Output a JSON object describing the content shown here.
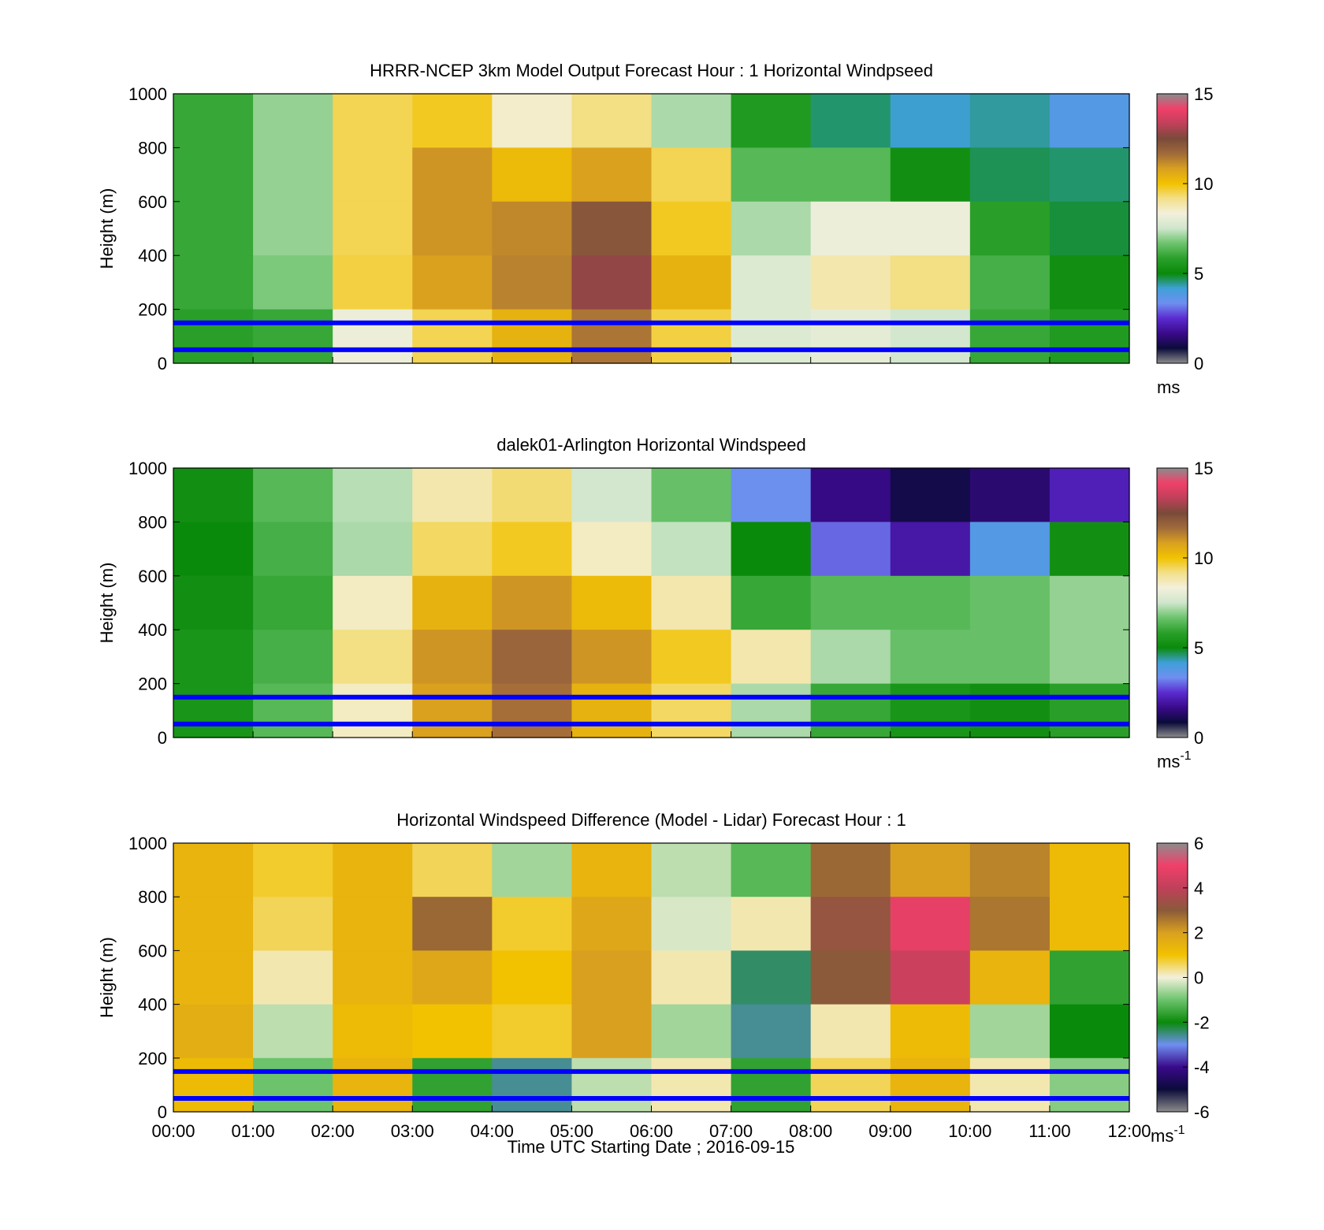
{
  "figure": {
    "time_axis_label": "Time UTC  Starting Date ; 2016-09-15"
  },
  "colors": {
    "wind_cmap": [
      "#8c8c8c",
      "#0b0b3a",
      "#3a0a8a",
      "#5b2bd0",
      "#6f8ff0",
      "#3fa0d8",
      "#0a8a0a",
      "#2aa02a",
      "#6cc36c",
      "#cfe6cc",
      "#f3f0dc",
      "#f3e08a",
      "#f2c200",
      "#d9a020",
      "#a06a3a",
      "#7a4a3a",
      "#c0405a",
      "#f0406a",
      "#8c8c8c"
    ],
    "diff_cmap": [
      "#8c8c8c",
      "#0b0b3a",
      "#3a0a8a",
      "#6f8ff0",
      "#0a8a0a",
      "#6cc36c",
      "#f3f0dc",
      "#f2c200",
      "#d9a020",
      "#8a5a3a",
      "#c0405a",
      "#f0406a",
      "#8c8c8c"
    ],
    "marker_line": "#0000ff"
  },
  "chart_data": [
    {
      "type": "heatmap",
      "title": "HRRR-NCEP 3km Model Output   Forecast Hour : 1 Horizontal Windpseed",
      "ylabel": "Height (m)",
      "ylim": [
        0,
        1000
      ],
      "y_ticks": [
        "0",
        "200",
        "400",
        "600",
        "800",
        "1000"
      ],
      "x_ticks": [],
      "colorbar": {
        "range": [
          0,
          15
        ],
        "ticks": [
          "0",
          "5",
          "10",
          "15"
        ],
        "unit": "ms",
        "unit_sup": ""
      },
      "reference_heights_m": [
        50,
        150
      ],
      "x_hours": [
        0.5,
        1.5,
        2.5,
        3.5,
        4.5,
        5.5,
        6.5,
        7.5,
        8.5,
        9.5,
        10.5,
        11.5
      ],
      "y_heights_m": [
        900,
        700,
        500,
        300,
        100
      ],
      "values": [
        [
          6.0,
          7.0,
          9.5,
          9.8,
          8.5,
          9.2,
          7.2,
          5.6,
          4.6,
          4.2,
          4.4,
          3.8
        ],
        [
          6.0,
          7.0,
          9.5,
          11.0,
          10.2,
          10.8,
          9.5,
          6.4,
          6.4,
          5.2,
          4.7,
          4.6
        ],
        [
          6.0,
          7.0,
          9.5,
          11.0,
          11.2,
          12.2,
          9.8,
          7.2,
          8.2,
          8.2,
          5.8,
          4.8
        ],
        [
          6.0,
          6.8,
          9.6,
          10.8,
          11.3,
          12.8,
          10.4,
          7.8,
          8.8,
          9.2,
          6.2,
          5.2
        ],
        [
          5.8,
          6.0,
          8.2,
          9.5,
          10.4,
          11.5,
          9.6,
          7.8,
          8.0,
          7.6,
          6.0,
          5.6
        ]
      ]
    },
    {
      "type": "heatmap",
      "title": "dalek01-Arlington  Horizontal Windspeed",
      "ylabel": "Height (m)",
      "ylim": [
        0,
        1000
      ],
      "y_ticks": [
        "0",
        "200",
        "400",
        "600",
        "800",
        "1000"
      ],
      "x_ticks": [],
      "colorbar": {
        "range": [
          0,
          15
        ],
        "ticks": [
          "0",
          "5",
          "10",
          "15"
        ],
        "unit": "ms",
        "unit_sup": "-1"
      },
      "reference_heights_m": [
        50,
        150
      ],
      "x_hours": [
        0.5,
        1.5,
        2.5,
        3.5,
        4.5,
        5.5,
        6.5,
        7.5,
        8.5,
        9.5,
        10.5,
        11.5
      ],
      "y_heights_m": [
        900,
        700,
        500,
        300,
        100
      ],
      "values": [
        [
          5.2,
          6.4,
          7.3,
          8.8,
          9.3,
          7.6,
          6.6,
          3.4,
          1.6,
          1.0,
          1.4,
          2.2
        ],
        [
          5.0,
          6.2,
          7.2,
          9.4,
          9.8,
          8.6,
          7.4,
          5.0,
          3.0,
          2.0,
          3.8,
          5.2
        ],
        [
          5.2,
          6.0,
          8.6,
          10.4,
          11.0,
          10.2,
          8.8,
          6.0,
          6.4,
          6.4,
          6.6,
          7.0
        ],
        [
          5.4,
          6.2,
          9.2,
          11.0,
          11.8,
          11.0,
          9.8,
          8.8,
          7.2,
          6.6,
          6.6,
          7.0
        ],
        [
          5.4,
          6.4,
          8.6,
          10.8,
          11.6,
          10.4,
          9.4,
          7.2,
          6.0,
          5.4,
          5.2,
          5.8
        ]
      ]
    },
    {
      "type": "heatmap",
      "title": "Horizontal Windspeed Difference (Model - Lidar) Forecast Hour : 1",
      "ylabel": "Height (m)",
      "xlabel": "Time UTC  Starting Date ; 2016-09-15",
      "ylim": [
        0,
        1000
      ],
      "y_ticks": [
        "0",
        "200",
        "400",
        "600",
        "800",
        "1000"
      ],
      "x_ticks": [
        "00:00",
        "01:00",
        "02:00",
        "03:00",
        "04:00",
        "05:00",
        "06:00",
        "07:00",
        "08:00",
        "09:00",
        "10:00",
        "11:00",
        "12:00"
      ],
      "colorbar": {
        "range": [
          -6,
          6
        ],
        "ticks": [
          "-6",
          "-4",
          "-2",
          "0",
          "2",
          "4",
          "6"
        ],
        "unit": "ms",
        "unit_sup": "-1"
      },
      "reference_heights_m": [
        50,
        150
      ],
      "x_hours": [
        0.5,
        1.5,
        2.5,
        3.5,
        4.5,
        5.5,
        6.5,
        7.5,
        8.5,
        9.5,
        10.5,
        11.5
      ],
      "y_heights_m": [
        900,
        700,
        500,
        300,
        100
      ],
      "values": [
        [
          1.4,
          0.8,
          1.4,
          0.6,
          -0.6,
          1.4,
          -0.4,
          -1.2,
          2.8,
          2.0,
          2.4,
          1.2
        ],
        [
          1.4,
          0.6,
          1.4,
          2.8,
          0.8,
          1.8,
          -0.2,
          0.2,
          3.2,
          4.8,
          2.6,
          1.2
        ],
        [
          1.4,
          0.2,
          1.4,
          1.8,
          1.0,
          2.0,
          0.2,
          -2.4,
          3.0,
          4.2,
          1.4,
          -1.6
        ],
        [
          1.6,
          -0.4,
          1.2,
          1.0,
          0.8,
          2.0,
          -0.6,
          -2.6,
          0.2,
          1.2,
          -0.6,
          -2.0
        ],
        [
          1.2,
          -1.0,
          1.4,
          -1.6,
          -2.6,
          -0.4,
          0.2,
          -1.6,
          0.6,
          1.4,
          0.2,
          -0.8
        ]
      ]
    }
  ]
}
